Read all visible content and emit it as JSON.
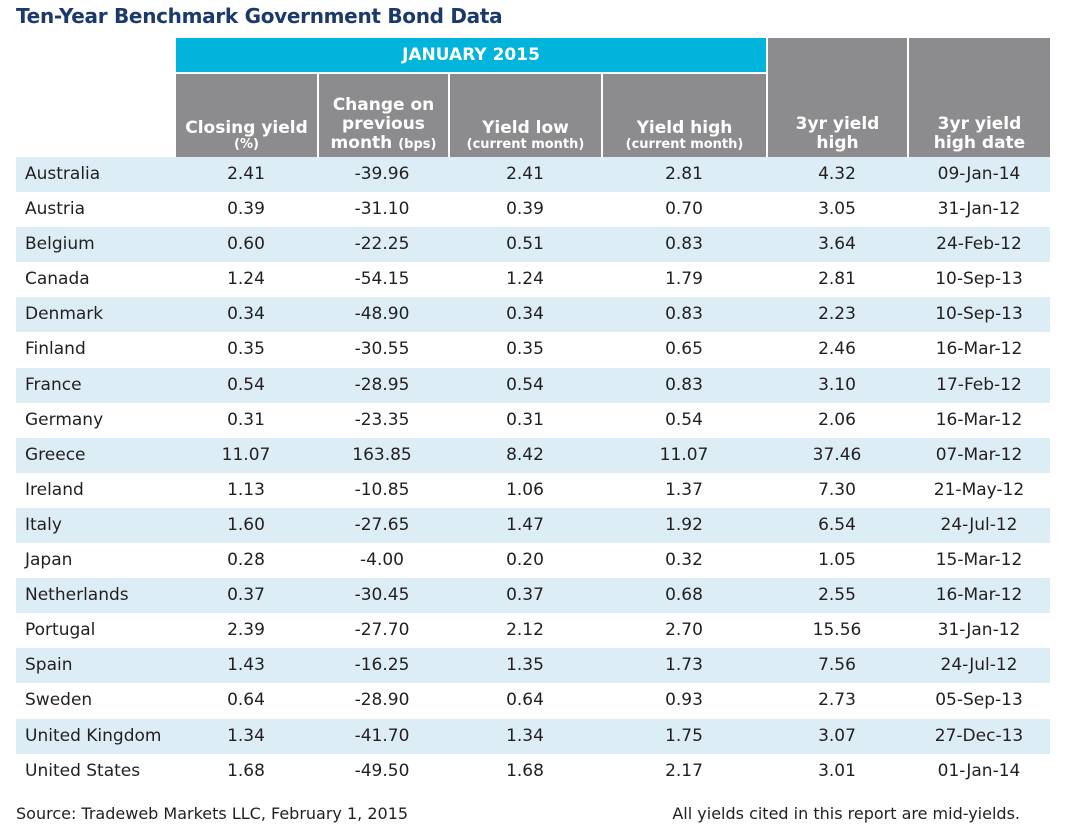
{
  "title": "Ten-Year Benchmark Government Bond Data",
  "period_header": "JANUARY 2015",
  "columns": [
    {
      "main": "Closing yield",
      "sub": "(%)"
    },
    {
      "main": "Change on previous month",
      "sub": "(bps)"
    },
    {
      "main": "Yield low",
      "sub": "(current month)"
    },
    {
      "main": "Yield high",
      "sub": "(current month)"
    },
    {
      "main": "3yr yield high",
      "sub": ""
    },
    {
      "main": "3yr yield high date",
      "sub": ""
    }
  ],
  "rows": [
    [
      "Australia",
      "2.41",
      "-39.96",
      "2.41",
      "2.81",
      "4.32",
      "09-Jan-14"
    ],
    [
      "Austria",
      "0.39",
      "-31.10",
      "0.39",
      "0.70",
      "3.05",
      "31-Jan-12"
    ],
    [
      "Belgium",
      "0.60",
      "-22.25",
      "0.51",
      "0.83",
      "3.64",
      "24-Feb-12"
    ],
    [
      "Canada",
      "1.24",
      "-54.15",
      "1.24",
      "1.79",
      "2.81",
      "10-Sep-13"
    ],
    [
      "Denmark",
      "0.34",
      "-48.90",
      "0.34",
      "0.83",
      "2.23",
      "10-Sep-13"
    ],
    [
      "Finland",
      "0.35",
      "-30.55",
      "0.35",
      "0.65",
      "2.46",
      "16-Mar-12"
    ],
    [
      "France",
      "0.54",
      "-28.95",
      "0.54",
      "0.83",
      "3.10",
      "17-Feb-12"
    ],
    [
      "Germany",
      "0.31",
      "-23.35",
      "0.31",
      "0.54",
      "2.06",
      "16-Mar-12"
    ],
    [
      "Greece",
      "11.07",
      "163.85",
      "8.42",
      "11.07",
      "37.46",
      "07-Mar-12"
    ],
    [
      "Ireland",
      "1.13",
      "-10.85",
      "1.06",
      "1.37",
      "7.30",
      "21-May-12"
    ],
    [
      "Italy",
      "1.60",
      "-27.65",
      "1.47",
      "1.92",
      "6.54",
      "24-Jul-12"
    ],
    [
      "Japan",
      "0.28",
      "-4.00",
      "0.20",
      "0.32",
      "1.05",
      "15-Mar-12"
    ],
    [
      "Netherlands",
      "0.37",
      "-30.45",
      "0.37",
      "0.68",
      "2.55",
      "16-Mar-12"
    ],
    [
      "Portugal",
      "2.39",
      "-27.70",
      "2.12",
      "2.70",
      "15.56",
      "31-Jan-12"
    ],
    [
      "Spain",
      "1.43",
      "-16.25",
      "1.35",
      "1.73",
      "7.56",
      "24-Jul-12"
    ],
    [
      "Sweden",
      "0.64",
      "-28.90",
      "0.64",
      "0.93",
      "2.73",
      "05-Sep-13"
    ],
    [
      "United Kingdom",
      "1.34",
      "-41.70",
      "1.34",
      "1.75",
      "3.07",
      "27-Dec-13"
    ],
    [
      "United States",
      "1.68",
      "-49.50",
      "1.68",
      "2.17",
      "3.01",
      "01-Jan-14"
    ]
  ],
  "source_note": "Source: Tradeweb Markets LLC, February 1, 2015",
  "yield_note": "All yields cited in this report are mid-yields.",
  "colors": {
    "title": "#1b3a6b",
    "period_band": "#00b4dc",
    "header_gray": "#8c8c8e",
    "row_shade": "#dcedf6"
  }
}
